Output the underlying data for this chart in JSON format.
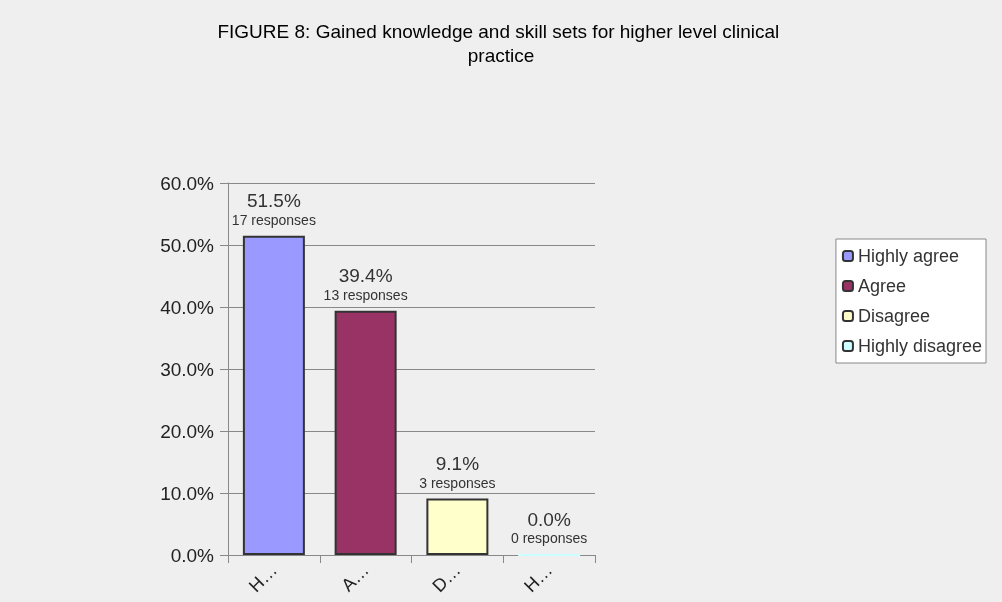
{
  "chart_data": {
    "type": "bar",
    "title": "FIGURE 8: Gained knowledge and skill sets for higher level clinical practice",
    "categories": [
      "H…",
      "A…",
      "D…",
      "H…"
    ],
    "series": [
      {
        "name": "Highly agree",
        "color": "#9999ff",
        "values": [
          51.5,
          null,
          null,
          null
        ],
        "value_labels": [
          "51.5%\n17 responses",
          null,
          null,
          null
        ]
      },
      {
        "name": "Agree",
        "color": "#993366",
        "values": [
          null,
          39.4,
          null,
          null
        ],
        "value_labels": [
          null,
          "39.4%\n13 responses",
          null,
          null
        ]
      },
      {
        "name": "Disagree",
        "color": "#ffffcc",
        "values": [
          null,
          null,
          9.1,
          null
        ],
        "value_labels": [
          null,
          null,
          "9.1%\n3 responses",
          null
        ]
      },
      {
        "name": "Highly disagree",
        "color": "#ccffff",
        "values": [
          null,
          null,
          null,
          0.0
        ],
        "value_labels": [
          null,
          null,
          null,
          "0.0%\n0 responses"
        ]
      }
    ],
    "ylim": [
      0,
      60
    ],
    "yticks": [
      {
        "value": 0,
        "label": "0.0%"
      },
      {
        "value": 10,
        "label": "10.0%"
      },
      {
        "value": 20,
        "label": "20.0%"
      },
      {
        "value": 30,
        "label": "30.0%"
      },
      {
        "value": 40,
        "label": "40.0%"
      },
      {
        "value": 50,
        "label": "50.0%"
      },
      {
        "value": 60,
        "label": "60.0%"
      }
    ],
    "grid": "y",
    "legend": "right"
  }
}
